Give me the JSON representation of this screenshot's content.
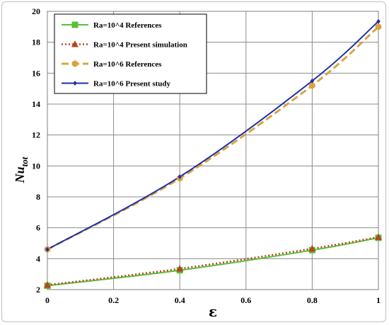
{
  "chart_data": {
    "type": "line",
    "xlabel": "ε",
    "ylabel_main": "Nu",
    "ylabel_sub": "tot",
    "xlim": [
      0,
      1
    ],
    "ylim": [
      2,
      20
    ],
    "xticks": [
      0,
      0.2,
      0.4,
      0.6,
      0.8,
      1
    ],
    "yticks": [
      2,
      4,
      6,
      8,
      10,
      12,
      14,
      16,
      18,
      20
    ],
    "grid": true,
    "legend_position": "top-left",
    "series": [
      {
        "name": "Ra=10^4 References",
        "color": "#5bbf3a",
        "marker": "square",
        "line": "solid",
        "x": [
          0,
          0.4,
          0.8,
          1
        ],
        "y": [
          2.25,
          3.25,
          4.55,
          5.35
        ]
      },
      {
        "name": "Ra=10^4 Present simulation",
        "color": "#b5451f",
        "marker": "triangle",
        "line": "dotted",
        "x": [
          0,
          0.4,
          0.8,
          1
        ],
        "y": [
          2.3,
          3.35,
          4.65,
          5.4
        ]
      },
      {
        "name": "Ra=10^6 References",
        "color": "#d9a440",
        "marker": "circle",
        "line": "dashed",
        "x": [
          0,
          0.4,
          0.8,
          1
        ],
        "y": [
          4.6,
          9.2,
          15.2,
          19.0
        ]
      },
      {
        "name": "Ra=10^6 Present study",
        "color": "#1f2fa6",
        "marker": "diamond",
        "line": "solid",
        "x": [
          0,
          0.4,
          0.8,
          1
        ],
        "y": [
          4.6,
          9.3,
          15.5,
          19.35
        ]
      }
    ]
  }
}
